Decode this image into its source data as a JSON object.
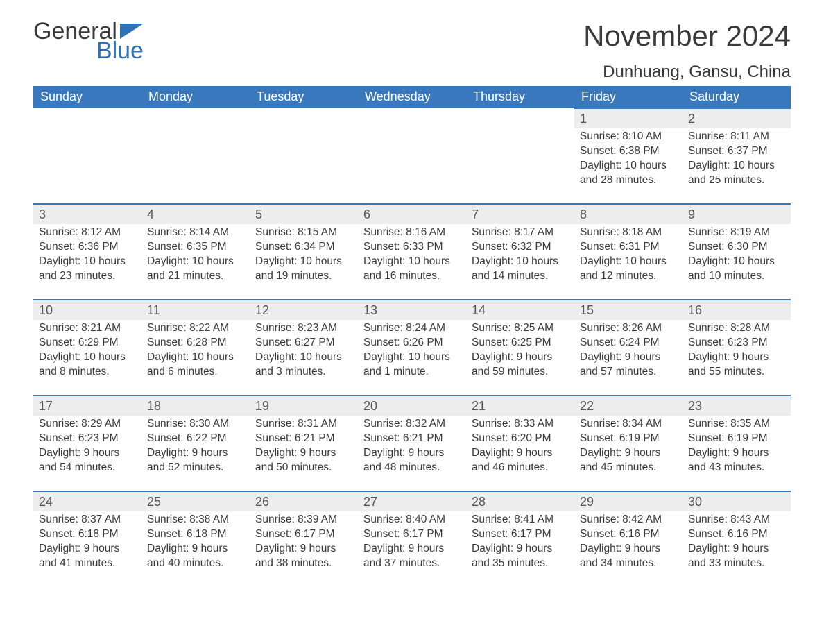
{
  "brand": {
    "word1": "General",
    "word2": "Blue",
    "flag_color": "#2f72b8"
  },
  "title": "November 2024",
  "location": "Dunhuang, Gansu, China",
  "colors": {
    "header_bg": "#3a78bd",
    "header_text": "#ffffff",
    "daynum_bg": "#ededed",
    "border_top": "#3a78bd",
    "body_text": "#3a3a3a",
    "background": "#ffffff"
  },
  "typography": {
    "title_fontsize": 42,
    "location_fontsize": 24,
    "header_fontsize": 18,
    "daynum_fontsize": 18,
    "body_fontsize": 15.5,
    "font_family": "Arial"
  },
  "layout": {
    "columns": 7,
    "rows": 5,
    "first_day_column_index": 5
  },
  "weekdays": [
    "Sunday",
    "Monday",
    "Tuesday",
    "Wednesday",
    "Thursday",
    "Friday",
    "Saturday"
  ],
  "labels": {
    "sunrise": "Sunrise:",
    "sunset": "Sunset:",
    "daylight": "Daylight:"
  },
  "days": [
    {
      "n": 1,
      "sr": "8:10 AM",
      "ss": "6:38 PM",
      "dl": "10 hours and 28 minutes."
    },
    {
      "n": 2,
      "sr": "8:11 AM",
      "ss": "6:37 PM",
      "dl": "10 hours and 25 minutes."
    },
    {
      "n": 3,
      "sr": "8:12 AM",
      "ss": "6:36 PM",
      "dl": "10 hours and 23 minutes."
    },
    {
      "n": 4,
      "sr": "8:14 AM",
      "ss": "6:35 PM",
      "dl": "10 hours and 21 minutes."
    },
    {
      "n": 5,
      "sr": "8:15 AM",
      "ss": "6:34 PM",
      "dl": "10 hours and 19 minutes."
    },
    {
      "n": 6,
      "sr": "8:16 AM",
      "ss": "6:33 PM",
      "dl": "10 hours and 16 minutes."
    },
    {
      "n": 7,
      "sr": "8:17 AM",
      "ss": "6:32 PM",
      "dl": "10 hours and 14 minutes."
    },
    {
      "n": 8,
      "sr": "8:18 AM",
      "ss": "6:31 PM",
      "dl": "10 hours and 12 minutes."
    },
    {
      "n": 9,
      "sr": "8:19 AM",
      "ss": "6:30 PM",
      "dl": "10 hours and 10 minutes."
    },
    {
      "n": 10,
      "sr": "8:21 AM",
      "ss": "6:29 PM",
      "dl": "10 hours and 8 minutes."
    },
    {
      "n": 11,
      "sr": "8:22 AM",
      "ss": "6:28 PM",
      "dl": "10 hours and 6 minutes."
    },
    {
      "n": 12,
      "sr": "8:23 AM",
      "ss": "6:27 PM",
      "dl": "10 hours and 3 minutes."
    },
    {
      "n": 13,
      "sr": "8:24 AM",
      "ss": "6:26 PM",
      "dl": "10 hours and 1 minute."
    },
    {
      "n": 14,
      "sr": "8:25 AM",
      "ss": "6:25 PM",
      "dl": "9 hours and 59 minutes."
    },
    {
      "n": 15,
      "sr": "8:26 AM",
      "ss": "6:24 PM",
      "dl": "9 hours and 57 minutes."
    },
    {
      "n": 16,
      "sr": "8:28 AM",
      "ss": "6:23 PM",
      "dl": "9 hours and 55 minutes."
    },
    {
      "n": 17,
      "sr": "8:29 AM",
      "ss": "6:23 PM",
      "dl": "9 hours and 54 minutes."
    },
    {
      "n": 18,
      "sr": "8:30 AM",
      "ss": "6:22 PM",
      "dl": "9 hours and 52 minutes."
    },
    {
      "n": 19,
      "sr": "8:31 AM",
      "ss": "6:21 PM",
      "dl": "9 hours and 50 minutes."
    },
    {
      "n": 20,
      "sr": "8:32 AM",
      "ss": "6:21 PM",
      "dl": "9 hours and 48 minutes."
    },
    {
      "n": 21,
      "sr": "8:33 AM",
      "ss": "6:20 PM",
      "dl": "9 hours and 46 minutes."
    },
    {
      "n": 22,
      "sr": "8:34 AM",
      "ss": "6:19 PM",
      "dl": "9 hours and 45 minutes."
    },
    {
      "n": 23,
      "sr": "8:35 AM",
      "ss": "6:19 PM",
      "dl": "9 hours and 43 minutes."
    },
    {
      "n": 24,
      "sr": "8:37 AM",
      "ss": "6:18 PM",
      "dl": "9 hours and 41 minutes."
    },
    {
      "n": 25,
      "sr": "8:38 AM",
      "ss": "6:18 PM",
      "dl": "9 hours and 40 minutes."
    },
    {
      "n": 26,
      "sr": "8:39 AM",
      "ss": "6:17 PM",
      "dl": "9 hours and 38 minutes."
    },
    {
      "n": 27,
      "sr": "8:40 AM",
      "ss": "6:17 PM",
      "dl": "9 hours and 37 minutes."
    },
    {
      "n": 28,
      "sr": "8:41 AM",
      "ss": "6:17 PM",
      "dl": "9 hours and 35 minutes."
    },
    {
      "n": 29,
      "sr": "8:42 AM",
      "ss": "6:16 PM",
      "dl": "9 hours and 34 minutes."
    },
    {
      "n": 30,
      "sr": "8:43 AM",
      "ss": "6:16 PM",
      "dl": "9 hours and 33 minutes."
    }
  ]
}
